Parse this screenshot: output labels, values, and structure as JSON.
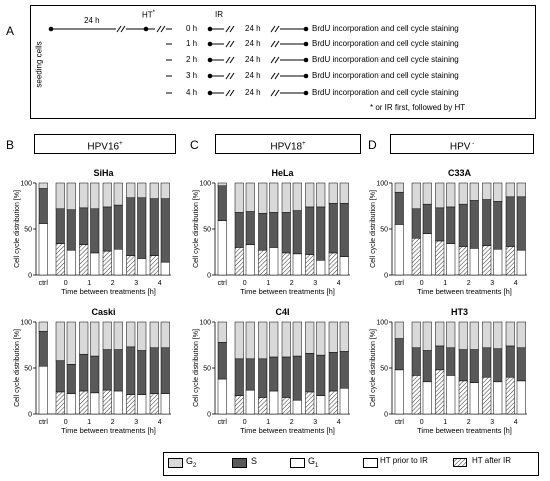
{
  "panel_labels": {
    "a": "A",
    "b": "B",
    "c": "C",
    "d": "D"
  },
  "schedule": {
    "seeding": "seeding cells",
    "t24": "24 h",
    "ht": "HT",
    "ht_mark": "*",
    "ir": "IR",
    "rows": [
      {
        "time": "0 h",
        "after": "24 h",
        "text": "BrdU incorporation and cell cycle staining"
      },
      {
        "time": "1 h",
        "after": "24 h",
        "text": "BrdU incorporation and cell cycle staining"
      },
      {
        "time": "2 h",
        "after": "24 h",
        "text": "BrdU incorporation and cell cycle staining"
      },
      {
        "time": "3 h",
        "after": "24 h",
        "text": "BrdU incorporation and cell cycle staining"
      },
      {
        "time": "4 h",
        "after": "24 h",
        "text": "BrdU incorporation and cell cycle staining"
      }
    ],
    "note": "* or IR first, followed by HT"
  },
  "groups": [
    {
      "label": "HPV16",
      "sup": "+"
    },
    {
      "label": "HPV18",
      "sup": "+"
    },
    {
      "label": "HPV",
      "sup": " -"
    }
  ],
  "axis": {
    "ylabel": "Cell cycle distribution [%]",
    "xlabel": "Time between treatments [h]",
    "yticks": [
      "0",
      "50",
      "100"
    ],
    "xticks": [
      "ctrl",
      "0",
      "1",
      "2",
      "3",
      "4"
    ]
  },
  "legend": {
    "g2": "G",
    "g2_sub": "2",
    "s": "S",
    "g1": "G",
    "g1_sub": "1",
    "ht_prior": "HT prior to IR",
    "ht_after": "HT after IR"
  },
  "colors": {
    "g2": "#d9d9d9",
    "s": "#595959",
    "g1": "#ffffff"
  },
  "chart_data": [
    {
      "type": "bar",
      "title": "SiHa",
      "xlabel": "Time between treatments [h]",
      "ylabel": "Cell cycle distribution [%]",
      "ylim": [
        0,
        100
      ],
      "categories": [
        "ctrl",
        "0",
        "1",
        "2",
        "3",
        "4"
      ],
      "bars": [
        {
          "x": "ctrl",
          "order": "ctrl",
          "g1": 56,
          "s": 38,
          "g2": 6
        },
        {
          "x": "0",
          "order": "HT after IR",
          "g1": 34,
          "s": 38,
          "g2": 28
        },
        {
          "x": "0",
          "order": "HT prior to IR",
          "g1": 27,
          "s": 44,
          "g2": 29
        },
        {
          "x": "1",
          "order": "HT after IR",
          "g1": 33,
          "s": 40,
          "g2": 27
        },
        {
          "x": "1",
          "order": "HT prior to IR",
          "g1": 24,
          "s": 48,
          "g2": 28
        },
        {
          "x": "2",
          "order": "HT after IR",
          "g1": 26,
          "s": 48,
          "g2": 26
        },
        {
          "x": "2",
          "order": "HT prior to IR",
          "g1": 28,
          "s": 48,
          "g2": 24
        },
        {
          "x": "3",
          "order": "HT after IR",
          "g1": 21,
          "s": 63,
          "g2": 16
        },
        {
          "x": "3",
          "order": "HT prior to IR",
          "g1": 18,
          "s": 66,
          "g2": 16
        },
        {
          "x": "4",
          "order": "HT after IR",
          "g1": 21,
          "s": 62,
          "g2": 17
        },
        {
          "x": "4",
          "order": "HT prior to IR",
          "g1": 14,
          "s": 69,
          "g2": 17
        }
      ]
    },
    {
      "type": "bar",
      "title": "HeLa",
      "xlabel": "Time between treatments [h]",
      "ylabel": "Cell cycle distribution [%]",
      "ylim": [
        0,
        100
      ],
      "categories": [
        "ctrl",
        "0",
        "1",
        "2",
        "3",
        "4"
      ],
      "bars": [
        {
          "x": "ctrl",
          "order": "ctrl",
          "g1": 59,
          "s": 38,
          "g2": 3
        },
        {
          "x": "0",
          "order": "HT after IR",
          "g1": 30,
          "s": 38,
          "g2": 32
        },
        {
          "x": "0",
          "order": "HT prior to IR",
          "g1": 33,
          "s": 36,
          "g2": 31
        },
        {
          "x": "1",
          "order": "HT after IR",
          "g1": 27,
          "s": 40,
          "g2": 33
        },
        {
          "x": "1",
          "order": "HT prior to IR",
          "g1": 30,
          "s": 38,
          "g2": 32
        },
        {
          "x": "2",
          "order": "HT after IR",
          "g1": 24,
          "s": 44,
          "g2": 32
        },
        {
          "x": "2",
          "order": "HT prior to IR",
          "g1": 23,
          "s": 47,
          "g2": 30
        },
        {
          "x": "3",
          "order": "HT after IR",
          "g1": 22,
          "s": 52,
          "g2": 26
        },
        {
          "x": "3",
          "order": "HT prior to IR",
          "g1": 16,
          "s": 58,
          "g2": 26
        },
        {
          "x": "4",
          "order": "HT after IR",
          "g1": 24,
          "s": 54,
          "g2": 22
        },
        {
          "x": "4",
          "order": "HT prior to IR",
          "g1": 20,
          "s": 58,
          "g2": 22
        }
      ]
    },
    {
      "type": "bar",
      "title": "C33A",
      "xlabel": "Time between treatments [h]",
      "ylabel": "Cell cycle distribution [%]",
      "ylim": [
        0,
        100
      ],
      "categories": [
        "ctrl",
        "0",
        "1",
        "2",
        "3",
        "4"
      ],
      "bars": [
        {
          "x": "ctrl",
          "order": "ctrl",
          "g1": 55,
          "s": 35,
          "g2": 10
        },
        {
          "x": "0",
          "order": "HT after IR",
          "g1": 40,
          "s": 32,
          "g2": 28
        },
        {
          "x": "0",
          "order": "HT prior to IR",
          "g1": 45,
          "s": 32,
          "g2": 23
        },
        {
          "x": "1",
          "order": "HT after IR",
          "g1": 37,
          "s": 36,
          "g2": 27
        },
        {
          "x": "1",
          "order": "HT prior to IR",
          "g1": 34,
          "s": 40,
          "g2": 26
        },
        {
          "x": "2",
          "order": "HT after IR",
          "g1": 31,
          "s": 46,
          "g2": 23
        },
        {
          "x": "2",
          "order": "HT prior to IR",
          "g1": 29,
          "s": 52,
          "g2": 19
        },
        {
          "x": "3",
          "order": "HT after IR",
          "g1": 32,
          "s": 50,
          "g2": 18
        },
        {
          "x": "3",
          "order": "HT prior to IR",
          "g1": 28,
          "s": 52,
          "g2": 20
        },
        {
          "x": "4",
          "order": "HT after IR",
          "g1": 31,
          "s": 54,
          "g2": 15
        },
        {
          "x": "4",
          "order": "HT prior to IR",
          "g1": 27,
          "s": 58,
          "g2": 15
        }
      ]
    },
    {
      "type": "bar",
      "title": "Caski",
      "xlabel": "Time between treatments [h]",
      "ylabel": "Cell cycle distribution [%]",
      "ylim": [
        0,
        100
      ],
      "categories": [
        "ctrl",
        "0",
        "1",
        "2",
        "3",
        "4"
      ],
      "bars": [
        {
          "x": "ctrl",
          "order": "ctrl",
          "g1": 52,
          "s": 38,
          "g2": 10
        },
        {
          "x": "0",
          "order": "HT after IR",
          "g1": 24,
          "s": 34,
          "g2": 42
        },
        {
          "x": "0",
          "order": "HT prior to IR",
          "g1": 22,
          "s": 32,
          "g2": 46
        },
        {
          "x": "1",
          "order": "HT after IR",
          "g1": 25,
          "s": 40,
          "g2": 35
        },
        {
          "x": "1",
          "order": "HT prior to IR",
          "g1": 23,
          "s": 40,
          "g2": 37
        },
        {
          "x": "2",
          "order": "HT after IR",
          "g1": 26,
          "s": 44,
          "g2": 30
        },
        {
          "x": "2",
          "order": "HT prior to IR",
          "g1": 25,
          "s": 45,
          "g2": 30
        },
        {
          "x": "3",
          "order": "HT after IR",
          "g1": 21,
          "s": 52,
          "g2": 27
        },
        {
          "x": "3",
          "order": "HT prior to IR",
          "g1": 21,
          "s": 48,
          "g2": 31
        },
        {
          "x": "4",
          "order": "HT after IR",
          "g1": 22,
          "s": 50,
          "g2": 28
        },
        {
          "x": "4",
          "order": "HT prior to IR",
          "g1": 22,
          "s": 50,
          "g2": 28
        }
      ]
    },
    {
      "type": "bar",
      "title": "C4I",
      "xlabel": "Time between treatments [h]",
      "ylabel": "Cell cycle distribution [%]",
      "ylim": [
        0,
        100
      ],
      "categories": [
        "ctrl",
        "0",
        "1",
        "2",
        "3",
        "4"
      ],
      "bars": [
        {
          "x": "ctrl",
          "order": "ctrl",
          "g1": 38,
          "s": 40,
          "g2": 22
        },
        {
          "x": "0",
          "order": "HT after IR",
          "g1": 20,
          "s": 40,
          "g2": 40
        },
        {
          "x": "0",
          "order": "HT prior to IR",
          "g1": 26,
          "s": 34,
          "g2": 40
        },
        {
          "x": "1",
          "order": "HT after IR",
          "g1": 18,
          "s": 42,
          "g2": 40
        },
        {
          "x": "1",
          "order": "HT prior to IR",
          "g1": 25,
          "s": 37,
          "g2": 38
        },
        {
          "x": "2",
          "order": "HT after IR",
          "g1": 18,
          "s": 44,
          "g2": 38
        },
        {
          "x": "2",
          "order": "HT prior to IR",
          "g1": 15,
          "s": 48,
          "g2": 37
        },
        {
          "x": "3",
          "order": "HT after IR",
          "g1": 24,
          "s": 42,
          "g2": 34
        },
        {
          "x": "3",
          "order": "HT prior to IR",
          "g1": 20,
          "s": 44,
          "g2": 36
        },
        {
          "x": "4",
          "order": "HT after IR",
          "g1": 25,
          "s": 42,
          "g2": 33
        },
        {
          "x": "4",
          "order": "HT prior to IR",
          "g1": 28,
          "s": 40,
          "g2": 32
        }
      ]
    },
    {
      "type": "bar",
      "title": "HT3",
      "xlabel": "Time between treatments [h]",
      "ylabel": "Cell cycle distribution [%]",
      "ylim": [
        0,
        100
      ],
      "categories": [
        "ctrl",
        "0",
        "1",
        "2",
        "3",
        "4"
      ],
      "bars": [
        {
          "x": "ctrl",
          "order": "ctrl",
          "g1": 48,
          "s": 34,
          "g2": 18
        },
        {
          "x": "0",
          "order": "HT after IR",
          "g1": 42,
          "s": 30,
          "g2": 28
        },
        {
          "x": "0",
          "order": "HT prior to IR",
          "g1": 35,
          "s": 34,
          "g2": 31
        },
        {
          "x": "1",
          "order": "HT after IR",
          "g1": 48,
          "s": 26,
          "g2": 26
        },
        {
          "x": "1",
          "order": "HT prior to IR",
          "g1": 42,
          "s": 30,
          "g2": 28
        },
        {
          "x": "2",
          "order": "HT after IR",
          "g1": 36,
          "s": 34,
          "g2": 30
        },
        {
          "x": "2",
          "order": "HT prior to IR",
          "g1": 34,
          "s": 36,
          "g2": 30
        },
        {
          "x": "3",
          "order": "HT after IR",
          "g1": 40,
          "s": 32,
          "g2": 28
        },
        {
          "x": "3",
          "order": "HT prior to IR",
          "g1": 35,
          "s": 36,
          "g2": 29
        },
        {
          "x": "4",
          "order": "HT after IR",
          "g1": 40,
          "s": 34,
          "g2": 26
        },
        {
          "x": "4",
          "order": "HT prior to IR",
          "g1": 36,
          "s": 36,
          "g2": 28
        }
      ]
    }
  ]
}
